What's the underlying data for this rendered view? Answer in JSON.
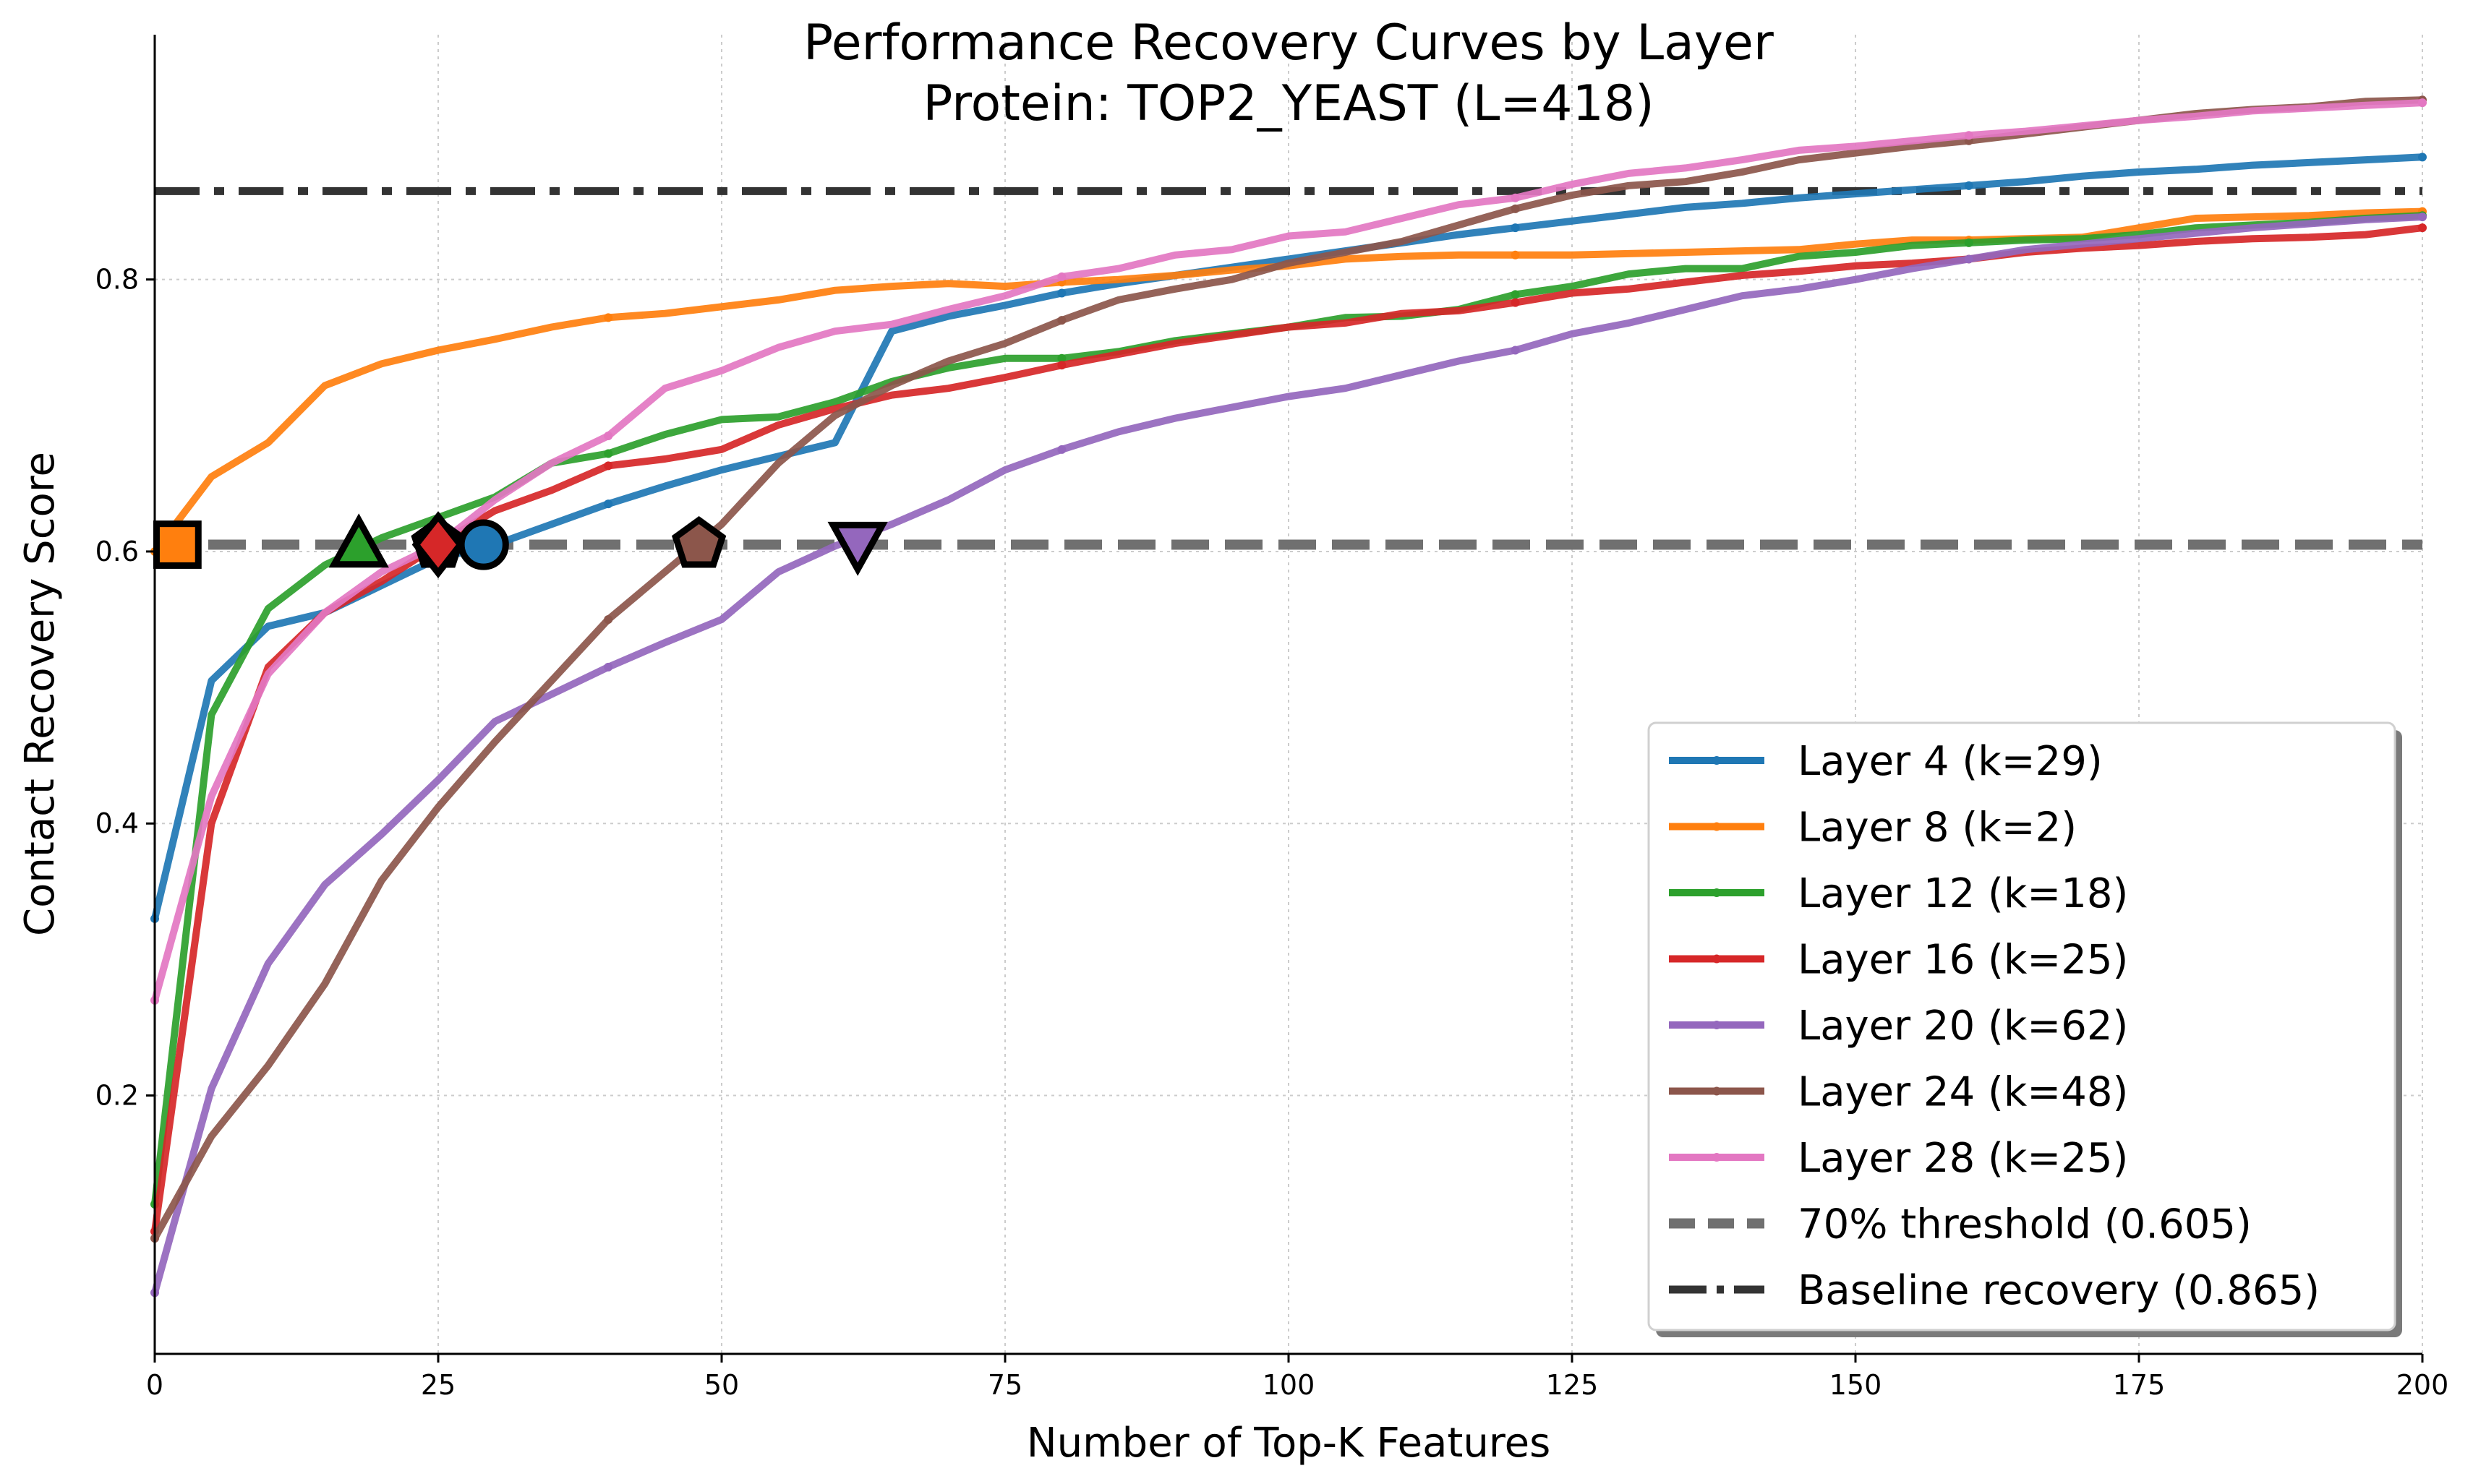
{
  "chart_data": {
    "type": "line",
    "title": "Performance Recovery Curves by Layer",
    "subtitle": "Protein: TOP2_YEAST (L=418)",
    "xlabel": "Number of Top-K Features",
    "ylabel": "Contact Recovery Score",
    "xlim": [
      0,
      200
    ],
    "ylim": [
      0.01,
      0.98
    ],
    "x_ticks": [
      "0",
      "25",
      "50",
      "75",
      "100",
      "125",
      "150",
      "175",
      "200"
    ],
    "y_ticks": [
      "0.2",
      "0.4",
      "0.6",
      "0.8"
    ],
    "grid": true,
    "legend_position": "lower-right",
    "x": [
      0,
      5,
      10,
      15,
      20,
      25,
      30,
      35,
      40,
      45,
      50,
      55,
      60,
      65,
      70,
      75,
      80,
      85,
      90,
      95,
      100,
      105,
      110,
      115,
      120,
      125,
      130,
      135,
      140,
      145,
      150,
      155,
      160,
      165,
      170,
      175,
      180,
      185,
      190,
      195,
      200
    ],
    "series": [
      {
        "name": "Layer 4 (k=29)",
        "color": "#1f77b4",
        "k": 29,
        "values": [
          0.33,
          0.505,
          0.545,
          0.555,
          0.575,
          0.595,
          0.605,
          0.62,
          0.635,
          0.648,
          0.66,
          0.67,
          0.68,
          0.762,
          0.773,
          0.781,
          0.79,
          0.797,
          0.803,
          0.809,
          0.815,
          0.821,
          0.827,
          0.833,
          0.838,
          0.843,
          0.848,
          0.853,
          0.856,
          0.86,
          0.863,
          0.866,
          0.869,
          0.872,
          0.876,
          0.879,
          0.881,
          0.884,
          0.886,
          0.888,
          0.89
        ]
      },
      {
        "name": "Layer 8 (k=2)",
        "color": "#ff7f0e",
        "k": 2,
        "values": [
          0.6,
          0.655,
          0.68,
          0.722,
          0.738,
          0.748,
          0.756,
          0.765,
          0.772,
          0.775,
          0.78,
          0.785,
          0.792,
          0.795,
          0.797,
          0.795,
          0.798,
          0.8,
          0.803,
          0.807,
          0.81,
          0.815,
          0.817,
          0.818,
          0.818,
          0.818,
          0.819,
          0.82,
          0.821,
          0.822,
          0.826,
          0.829,
          0.829,
          0.83,
          0.831,
          0.838,
          0.845,
          0.846,
          0.847,
          0.849,
          0.85
        ]
      },
      {
        "name": "Layer 12 (k=18)",
        "color": "#2ca02c",
        "k": 18,
        "values": [
          0.12,
          0.48,
          0.558,
          0.59,
          0.61,
          0.625,
          0.64,
          0.665,
          0.672,
          0.686,
          0.697,
          0.699,
          0.71,
          0.725,
          0.735,
          0.742,
          0.742,
          0.747,
          0.755,
          0.76,
          0.765,
          0.772,
          0.773,
          0.778,
          0.789,
          0.795,
          0.804,
          0.808,
          0.808,
          0.817,
          0.82,
          0.825,
          0.827,
          0.829,
          0.83,
          0.833,
          0.838,
          0.84,
          0.842,
          0.845,
          0.847
        ]
      },
      {
        "name": "Layer 16 (k=25)",
        "color": "#d62728",
        "k": 25,
        "values": [
          0.1,
          0.4,
          0.515,
          0.555,
          0.578,
          0.605,
          0.63,
          0.645,
          0.663,
          0.668,
          0.675,
          0.693,
          0.705,
          0.715,
          0.72,
          0.728,
          0.737,
          0.745,
          0.753,
          0.759,
          0.765,
          0.768,
          0.775,
          0.777,
          0.783,
          0.79,
          0.793,
          0.798,
          0.803,
          0.806,
          0.81,
          0.812,
          0.815,
          0.82,
          0.823,
          0.825,
          0.828,
          0.83,
          0.831,
          0.833,
          0.838
        ]
      },
      {
        "name": "Layer 20 (k=62)",
        "color": "#9467bd",
        "k": 62,
        "values": [
          0.055,
          0.205,
          0.297,
          0.355,
          0.392,
          0.432,
          0.475,
          0.495,
          0.515,
          0.533,
          0.55,
          0.585,
          0.604,
          0.62,
          0.638,
          0.66,
          0.675,
          0.688,
          0.698,
          0.706,
          0.714,
          0.72,
          0.73,
          0.74,
          0.748,
          0.76,
          0.768,
          0.778,
          0.788,
          0.793,
          0.8,
          0.808,
          0.815,
          0.822,
          0.826,
          0.83,
          0.834,
          0.838,
          0.841,
          0.844,
          0.846
        ]
      },
      {
        "name": "Layer 24 (k=48)",
        "color": "#8c564b",
        "k": 48,
        "values": [
          0.095,
          0.17,
          0.222,
          0.282,
          0.358,
          0.412,
          0.46,
          0.505,
          0.55,
          0.585,
          0.62,
          0.665,
          0.7,
          0.722,
          0.74,
          0.753,
          0.77,
          0.785,
          0.793,
          0.8,
          0.812,
          0.82,
          0.828,
          0.84,
          0.852,
          0.862,
          0.869,
          0.872,
          0.879,
          0.888,
          0.893,
          0.898,
          0.902,
          0.907,
          0.912,
          0.917,
          0.922,
          0.925,
          0.927,
          0.931,
          0.932
        ]
      },
      {
        "name": "Layer 28 (k=25)",
        "color": "#e377c2",
        "k": 25,
        "values": [
          0.27,
          0.42,
          0.51,
          0.555,
          0.585,
          0.605,
          0.638,
          0.665,
          0.685,
          0.72,
          0.733,
          0.75,
          0.762,
          0.767,
          0.778,
          0.788,
          0.802,
          0.808,
          0.818,
          0.822,
          0.832,
          0.835,
          0.845,
          0.855,
          0.86,
          0.87,
          0.878,
          0.882,
          0.888,
          0.895,
          0.898,
          0.902,
          0.906,
          0.909,
          0.913,
          0.917,
          0.92,
          0.924,
          0.926,
          0.928,
          0.93
        ]
      }
    ],
    "threshold": {
      "name": "70% threshold (0.605)",
      "value": 0.605,
      "color": "#707070",
      "style": "dashed"
    },
    "baseline": {
      "name": "Baseline recovery (0.865)",
      "value": 0.865,
      "color": "#333333",
      "style": "dash-dot"
    },
    "markers": [
      {
        "series": "Layer 8 (k=2)",
        "x": 2,
        "y": 0.605,
        "shape": "square",
        "color": "#ff7f0e"
      },
      {
        "series": "Layer 12 (k=18)",
        "x": 18,
        "y": 0.605,
        "shape": "triangle-up",
        "color": "#2ca02c"
      },
      {
        "series": "Layer 28 (k=25)",
        "x": 25,
        "y": 0.605,
        "shape": "pentagon",
        "color": "#e377c2"
      },
      {
        "series": "Layer 16 (k=25)",
        "x": 25,
        "y": 0.605,
        "shape": "diamond",
        "color": "#d62728"
      },
      {
        "series": "Layer 4 (k=29)",
        "x": 29,
        "y": 0.605,
        "shape": "circle",
        "color": "#1f77b4"
      },
      {
        "series": "Layer 24 (k=48)",
        "x": 48,
        "y": 0.605,
        "shape": "pentagon",
        "color": "#8c564b"
      },
      {
        "series": "Layer 20 (k=62)",
        "x": 62,
        "y": 0.605,
        "shape": "triangle-down",
        "color": "#9467bd"
      }
    ]
  }
}
